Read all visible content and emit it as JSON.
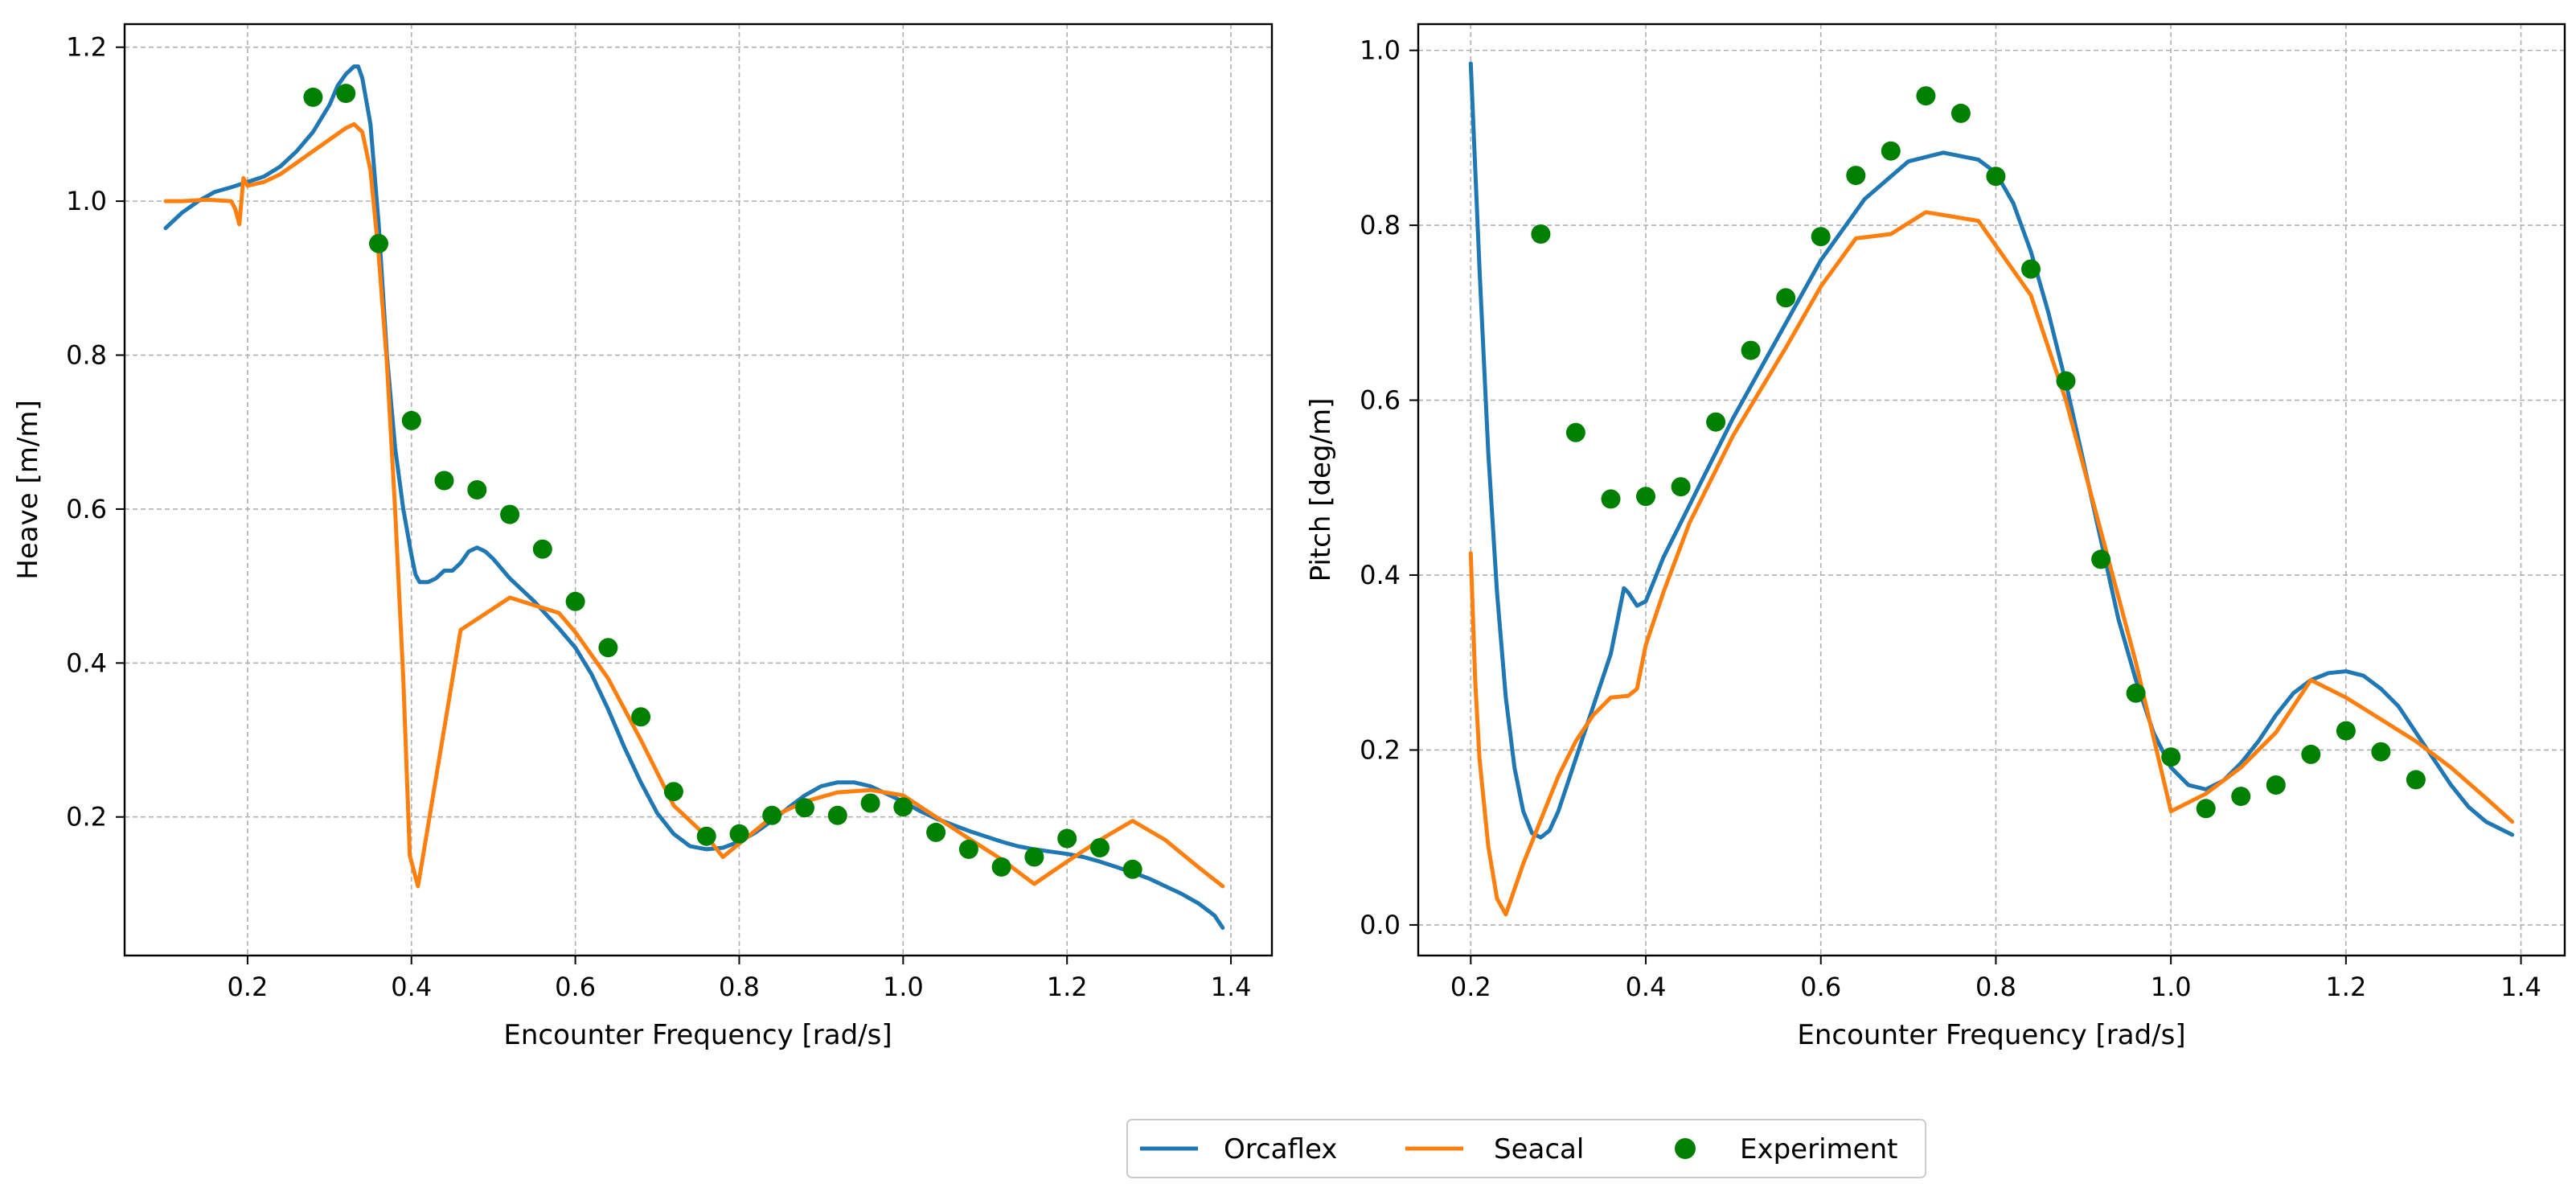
{
  "chart_data": [
    {
      "type": "line",
      "title": "",
      "xlabel": "Encounter Frequency [rad/s]",
      "ylabel": "Heave [m/m]",
      "xlim": [
        0.05,
        1.45
      ],
      "ylim": [
        0.02,
        1.23
      ],
      "xticks": [
        0.2,
        0.4,
        0.6,
        0.8,
        1.0,
        1.2,
        1.4
      ],
      "xtick_labels": [
        "0.2",
        "0.4",
        "0.6",
        "0.8",
        "1.0",
        "1.2",
        "1.4"
      ],
      "yticks": [
        0.2,
        0.4,
        0.6,
        0.8,
        1.0,
        1.2
      ],
      "ytick_labels": [
        "0.2",
        "0.4",
        "0.6",
        "0.8",
        "1.0",
        "1.2"
      ],
      "grid": true,
      "series": [
        {
          "name": "Orcaflex",
          "kind": "line",
          "color": "#1f77b4",
          "x": [
            0.1,
            0.12,
            0.14,
            0.16,
            0.18,
            0.2,
            0.22,
            0.24,
            0.26,
            0.28,
            0.3,
            0.31,
            0.32,
            0.33,
            0.335,
            0.34,
            0.35,
            0.36,
            0.37,
            0.38,
            0.39,
            0.4,
            0.405,
            0.41,
            0.42,
            0.43,
            0.44,
            0.45,
            0.46,
            0.47,
            0.48,
            0.49,
            0.5,
            0.52,
            0.55,
            0.58,
            0.6,
            0.62,
            0.64,
            0.66,
            0.68,
            0.7,
            0.72,
            0.74,
            0.76,
            0.78,
            0.8,
            0.82,
            0.84,
            0.86,
            0.88,
            0.9,
            0.92,
            0.94,
            0.96,
            0.98,
            1.0,
            1.02,
            1.04,
            1.06,
            1.08,
            1.1,
            1.12,
            1.14,
            1.16,
            1.18,
            1.2,
            1.22,
            1.24,
            1.26,
            1.28,
            1.3,
            1.32,
            1.34,
            1.36,
            1.38,
            1.39
          ],
          "y": [
            0.965,
            0.985,
            1.0,
            1.012,
            1.018,
            1.025,
            1.032,
            1.045,
            1.065,
            1.09,
            1.125,
            1.15,
            1.165,
            1.175,
            1.175,
            1.16,
            1.1,
            0.97,
            0.8,
            0.68,
            0.6,
            0.54,
            0.515,
            0.505,
            0.505,
            0.51,
            0.52,
            0.52,
            0.53,
            0.545,
            0.55,
            0.545,
            0.535,
            0.51,
            0.48,
            0.445,
            0.42,
            0.385,
            0.34,
            0.29,
            0.245,
            0.205,
            0.178,
            0.162,
            0.158,
            0.16,
            0.168,
            0.18,
            0.195,
            0.212,
            0.228,
            0.24,
            0.245,
            0.245,
            0.24,
            0.23,
            0.22,
            0.208,
            0.198,
            0.19,
            0.182,
            0.175,
            0.168,
            0.162,
            0.158,
            0.155,
            0.152,
            0.148,
            0.142,
            0.135,
            0.128,
            0.12,
            0.11,
            0.1,
            0.088,
            0.072,
            0.056
          ]
        },
        {
          "name": "Seacal",
          "kind": "line",
          "color": "#ff7f0e",
          "x": [
            0.1,
            0.12,
            0.15,
            0.18,
            0.185,
            0.19,
            0.195,
            0.2,
            0.22,
            0.24,
            0.26,
            0.28,
            0.3,
            0.32,
            0.33,
            0.34,
            0.35,
            0.36,
            0.37,
            0.38,
            0.39,
            0.398,
            0.408,
            0.46,
            0.52,
            0.58,
            0.6,
            0.64,
            0.68,
            0.72,
            0.76,
            0.78,
            0.84,
            0.88,
            0.92,
            0.96,
            1.0,
            1.04,
            1.08,
            1.12,
            1.16,
            1.2,
            1.24,
            1.28,
            1.32,
            1.36,
            1.39
          ],
          "y": [
            1.0,
            1.0,
            1.002,
            1.0,
            0.99,
            0.97,
            1.03,
            1.02,
            1.025,
            1.035,
            1.05,
            1.065,
            1.08,
            1.095,
            1.1,
            1.09,
            1.04,
            0.93,
            0.79,
            0.6,
            0.38,
            0.15,
            0.11,
            0.443,
            0.485,
            0.465,
            0.44,
            0.38,
            0.3,
            0.215,
            0.175,
            0.148,
            0.2,
            0.22,
            0.232,
            0.235,
            0.228,
            0.2,
            0.172,
            0.145,
            0.113,
            0.142,
            0.17,
            0.195,
            0.17,
            0.135,
            0.11
          ]
        },
        {
          "name": "Experiment",
          "kind": "scatter",
          "color": "#008000",
          "x": [
            0.28,
            0.32,
            0.36,
            0.4,
            0.44,
            0.48,
            0.52,
            0.56,
            0.6,
            0.64,
            0.68,
            0.72,
            0.76,
            0.8,
            0.84,
            0.88,
            0.92,
            0.96,
            1.0,
            1.04,
            1.08,
            1.12,
            1.16,
            1.2,
            1.24,
            1.28
          ],
          "y": [
            1.135,
            1.14,
            0.945,
            0.715,
            0.637,
            0.625,
            0.593,
            0.548,
            0.48,
            0.42,
            0.33,
            0.233,
            0.175,
            0.178,
            0.202,
            0.212,
            0.202,
            0.218,
            0.213,
            0.18,
            0.158,
            0.135,
            0.148,
            0.172,
            0.16,
            0.132
          ]
        }
      ]
    },
    {
      "type": "line",
      "title": "",
      "xlabel": "Encounter Frequency [rad/s]",
      "ylabel": "Pitch [deg/m]",
      "xlim": [
        0.14,
        1.45
      ],
      "ylim": [
        -0.035,
        1.03
      ],
      "xticks": [
        0.2,
        0.4,
        0.6,
        0.8,
        1.0,
        1.2,
        1.4
      ],
      "xtick_labels": [
        "0.2",
        "0.4",
        "0.6",
        "0.8",
        "1.0",
        "1.2",
        "1.4"
      ],
      "yticks": [
        0.0,
        0.2,
        0.4,
        0.6,
        0.8,
        1.0
      ],
      "ytick_labels": [
        "0.0",
        "0.2",
        "0.4",
        "0.6",
        "0.8",
        "1.0"
      ],
      "grid": true,
      "series": [
        {
          "name": "Orcaflex",
          "kind": "line",
          "color": "#1f77b4",
          "x": [
            0.2,
            0.21,
            0.22,
            0.23,
            0.24,
            0.25,
            0.26,
            0.27,
            0.28,
            0.29,
            0.3,
            0.31,
            0.32,
            0.33,
            0.34,
            0.35,
            0.36,
            0.37,
            0.375,
            0.38,
            0.39,
            0.4,
            0.41,
            0.42,
            0.44,
            0.46,
            0.5,
            0.55,
            0.6,
            0.65,
            0.7,
            0.74,
            0.78,
            0.8,
            0.82,
            0.84,
            0.86,
            0.88,
            0.9,
            0.92,
            0.94,
            0.96,
            0.98,
            1.0,
            1.02,
            1.04,
            1.06,
            1.08,
            1.1,
            1.12,
            1.14,
            1.16,
            1.18,
            1.2,
            1.22,
            1.24,
            1.26,
            1.28,
            1.3,
            1.32,
            1.34,
            1.36,
            1.39
          ],
          "y": [
            0.985,
            0.75,
            0.54,
            0.38,
            0.26,
            0.18,
            0.13,
            0.105,
            0.1,
            0.108,
            0.13,
            0.16,
            0.19,
            0.22,
            0.25,
            0.28,
            0.31,
            0.36,
            0.385,
            0.38,
            0.365,
            0.37,
            0.395,
            0.42,
            0.46,
            0.5,
            0.58,
            0.67,
            0.76,
            0.83,
            0.873,
            0.883,
            0.875,
            0.86,
            0.825,
            0.77,
            0.7,
            0.62,
            0.53,
            0.44,
            0.35,
            0.28,
            0.22,
            0.18,
            0.16,
            0.155,
            0.165,
            0.185,
            0.21,
            0.24,
            0.265,
            0.28,
            0.288,
            0.29,
            0.285,
            0.27,
            0.25,
            0.22,
            0.19,
            0.16,
            0.135,
            0.118,
            0.103
          ]
        },
        {
          "name": "Seacal",
          "kind": "line",
          "color": "#ff7f0e",
          "x": [
            0.2,
            0.205,
            0.21,
            0.22,
            0.23,
            0.24,
            0.26,
            0.28,
            0.3,
            0.32,
            0.34,
            0.36,
            0.38,
            0.39,
            0.4,
            0.42,
            0.45,
            0.5,
            0.56,
            0.6,
            0.64,
            0.68,
            0.72,
            0.78,
            0.84,
            0.88,
            0.92,
            0.96,
            1.0,
            1.04,
            1.08,
            1.12,
            1.16,
            1.2,
            1.24,
            1.28,
            1.32,
            1.36,
            1.39
          ],
          "y": [
            0.425,
            0.28,
            0.19,
            0.09,
            0.03,
            0.012,
            0.07,
            0.12,
            0.17,
            0.21,
            0.24,
            0.26,
            0.262,
            0.27,
            0.32,
            0.38,
            0.46,
            0.56,
            0.66,
            0.73,
            0.785,
            0.79,
            0.815,
            0.805,
            0.72,
            0.6,
            0.45,
            0.3,
            0.13,
            0.15,
            0.18,
            0.22,
            0.28,
            0.26,
            0.235,
            0.21,
            0.18,
            0.145,
            0.118
          ]
        },
        {
          "name": "Experiment",
          "kind": "scatter",
          "color": "#008000",
          "x": [
            0.28,
            0.32,
            0.36,
            0.4,
            0.44,
            0.48,
            0.52,
            0.56,
            0.6,
            0.64,
            0.68,
            0.72,
            0.76,
            0.8,
            0.84,
            0.88,
            0.92,
            0.96,
            1.0,
            1.04,
            1.08,
            1.12,
            1.16,
            1.2,
            1.24,
            1.28
          ],
          "y": [
            0.79,
            0.563,
            0.487,
            0.49,
            0.501,
            0.575,
            0.657,
            0.717,
            0.787,
            0.857,
            0.885,
            0.948,
            0.928,
            0.856,
            0.75,
            0.622,
            0.418,
            0.265,
            0.192,
            0.133,
            0.147,
            0.16,
            0.195,
            0.222,
            0.198,
            0.166
          ]
        }
      ]
    }
  ],
  "legend": {
    "position": "bottom-center",
    "entries": [
      {
        "label": "Orcaflex",
        "kind": "line",
        "color": "#1f77b4"
      },
      {
        "label": "Seacal",
        "kind": "line",
        "color": "#ff7f0e"
      },
      {
        "label": "Experiment",
        "kind": "scatter",
        "color": "#008000"
      }
    ]
  }
}
